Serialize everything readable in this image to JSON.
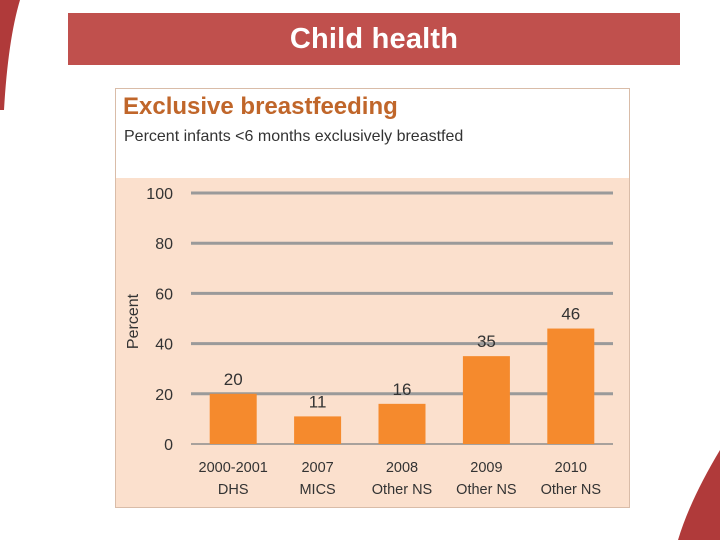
{
  "slide": {
    "title": "Child health",
    "accent_color": "#c0504d"
  },
  "chart_data": {
    "type": "bar",
    "title": "Exclusive breastfeeding",
    "subtitle": "Percent infants <6 months exclusively breastfed",
    "ylabel": "Percent",
    "xlabel": "",
    "ylim": [
      0,
      100
    ],
    "yticks": [
      0,
      20,
      40,
      60,
      80,
      100
    ],
    "categories": [
      [
        "2000-2001",
        "DHS"
      ],
      [
        "2007",
        "MICS"
      ],
      [
        "2008",
        "Other NS"
      ],
      [
        "2009",
        "Other NS"
      ],
      [
        "2010",
        "Other NS"
      ]
    ],
    "values": [
      20,
      11,
      16,
      35,
      46
    ],
    "grid": true,
    "bar_color": "#f58a2d",
    "header_color": "#c0662a",
    "background_color": "#fbe0cd"
  }
}
